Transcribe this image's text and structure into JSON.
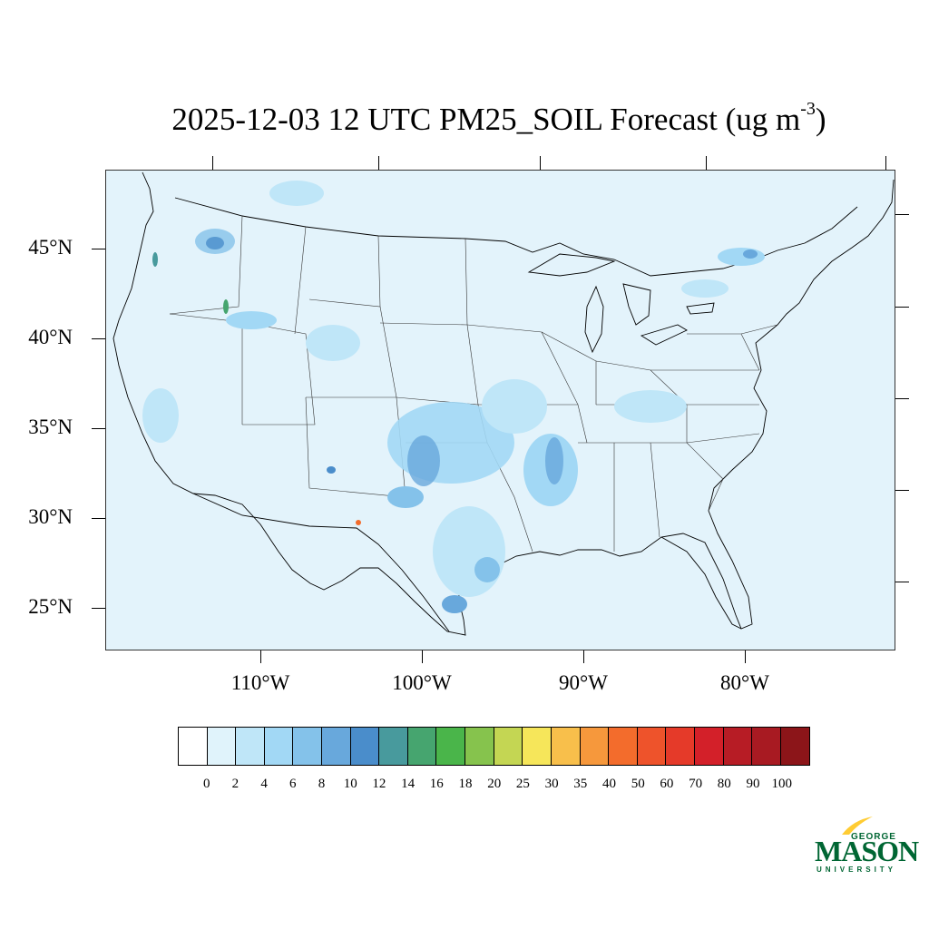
{
  "title": {
    "main": "2025-12-03 12 UTC PM25_SOIL Forecast (ug m",
    "sup": "-3",
    "close": ")"
  },
  "map": {
    "latitude_labels": [
      "45°N",
      "40°N",
      "35°N",
      "30°N",
      "25°N"
    ],
    "longitude_labels": [
      "110°W",
      "100°W",
      "90°W",
      "80°W"
    ],
    "ocean_color": "#e3f3fb",
    "land_color": "#e3f3fb"
  },
  "colorbar": {
    "labels": [
      "0",
      "2",
      "4",
      "6",
      "8",
      "10",
      "12",
      "14",
      "16",
      "18",
      "20",
      "25",
      "30",
      "35",
      "40",
      "50",
      "60",
      "70",
      "80",
      "90",
      "100"
    ],
    "colors": [
      "#ffffff",
      "#e0f3fb",
      "#bfe6f8",
      "#a2d8f5",
      "#84c2ea",
      "#68a8dc",
      "#4a8dcb",
      "#489a9d",
      "#46a56f",
      "#4ab54a",
      "#86c34d",
      "#c4d653",
      "#f6e65a",
      "#f8bf4b",
      "#f6983c",
      "#f36c2c",
      "#ee532b",
      "#e53a29",
      "#d32029",
      "#b71c25",
      "#a81a22",
      "#8c1519"
    ]
  },
  "logo": {
    "name": "GEORGE MASON UNIVERSITY",
    "line1": "GEORGE",
    "line2": "MASON",
    "line3": "UNIVERSITY",
    "color": "#006633"
  }
}
